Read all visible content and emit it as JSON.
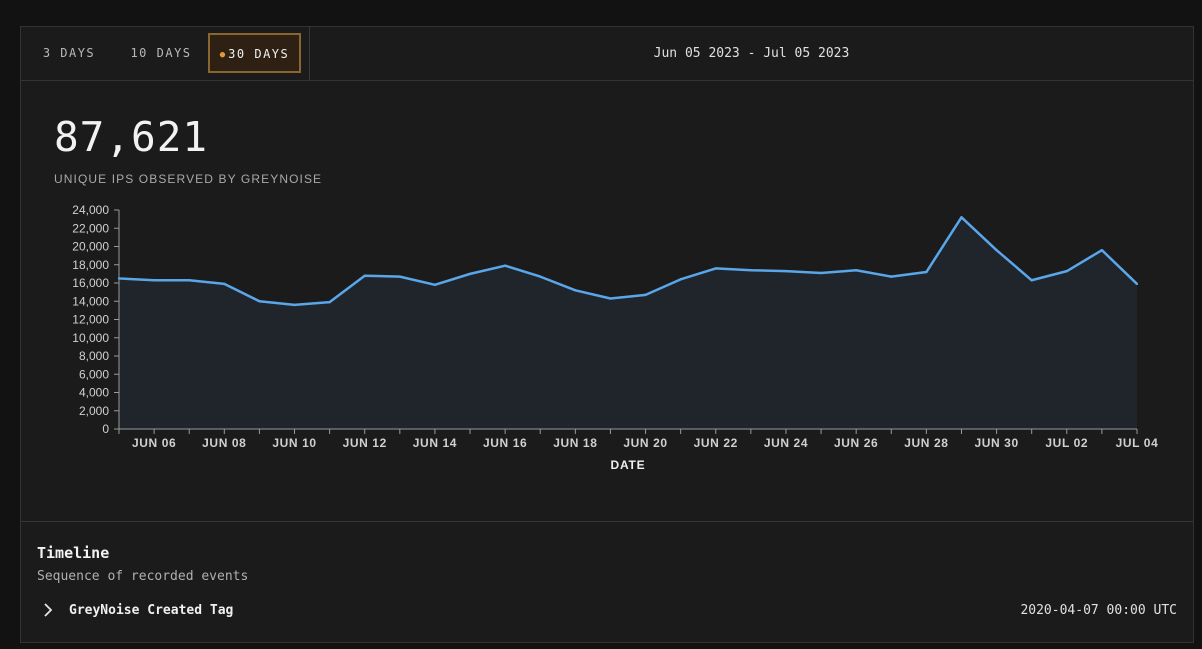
{
  "range_tabs": [
    {
      "label": "3 DAYS",
      "active": false
    },
    {
      "label": "10 DAYS",
      "active": false
    },
    {
      "label": "30 DAYS",
      "active": true
    }
  ],
  "date_range": "Jun 05 2023 - Jul 05 2023",
  "stat": {
    "value": "87,621",
    "label": "UNIQUE IPS OBSERVED BY GREYNOISE"
  },
  "chart_data": {
    "type": "area",
    "xlabel": "DATE",
    "ylabel": "",
    "x": [
      "2023-06-05",
      "2023-06-06",
      "2023-06-07",
      "2023-06-08",
      "2023-06-09",
      "2023-06-10",
      "2023-06-11",
      "2023-06-12",
      "2023-06-13",
      "2023-06-14",
      "2023-06-15",
      "2023-06-16",
      "2023-06-17",
      "2023-06-18",
      "2023-06-19",
      "2023-06-20",
      "2023-06-21",
      "2023-06-22",
      "2023-06-23",
      "2023-06-24",
      "2023-06-25",
      "2023-06-26",
      "2023-06-27",
      "2023-06-28",
      "2023-06-29",
      "2023-06-30",
      "2023-07-01",
      "2023-07-02",
      "2023-07-03",
      "2023-07-04"
    ],
    "values": [
      16500,
      16300,
      16300,
      15900,
      14000,
      13600,
      13900,
      16800,
      16700,
      15800,
      17000,
      17900,
      16700,
      15200,
      14300,
      14700,
      16400,
      17600,
      17400,
      17300,
      17100,
      17400,
      16700,
      17200,
      23200,
      19600,
      16300,
      17300,
      19600,
      15900
    ],
    "ylim": [
      0,
      24000
    ],
    "yticks": [
      "0",
      "2,000",
      "4,000",
      "6,000",
      "8,000",
      "10,000",
      "12,000",
      "14,000",
      "16,000",
      "18,000",
      "20,000",
      "22,000",
      "24,000"
    ],
    "xticks": [
      "JUN 06",
      "JUN 08",
      "JUN 10",
      "JUN 12",
      "JUN 14",
      "JUN 16",
      "JUN 18",
      "JUN 20",
      "JUN 22",
      "JUN 24",
      "JUN 26",
      "JUN 28",
      "JUN 30",
      "JUL 02",
      "JUL 04"
    ],
    "grid": false,
    "line_color": "#5aa6ea"
  },
  "timeline": {
    "title": "Timeline",
    "subtitle": "Sequence of recorded events",
    "events": [
      {
        "label": "GreyNoise Created Tag",
        "time": "2020-04-07 00:00 UTC",
        "icon": "chevron-right-icon"
      }
    ]
  },
  "colors": {
    "accent": "#e09a35",
    "active_border": "#8a6530",
    "line": "#5aa6ea"
  }
}
